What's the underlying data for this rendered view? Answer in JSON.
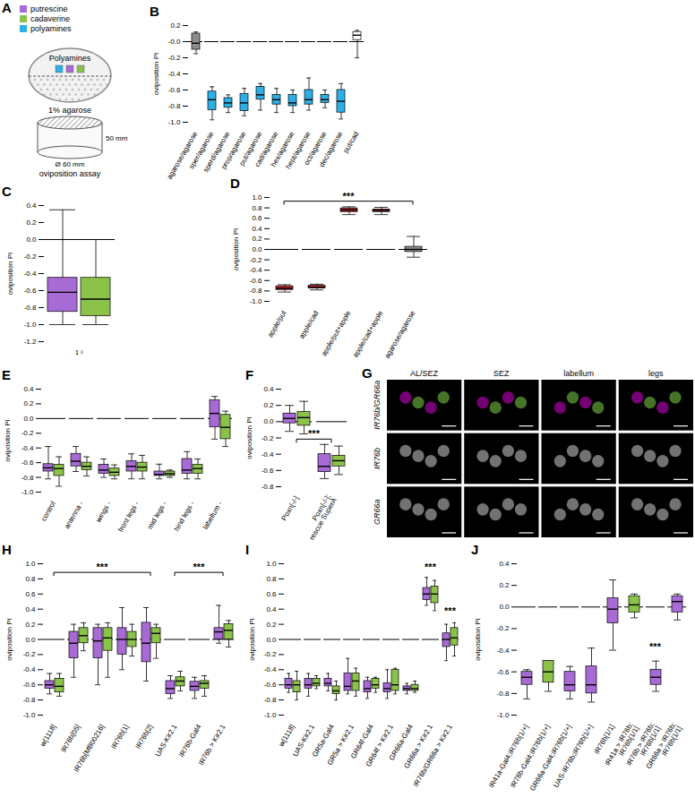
{
  "chart_data": [
    {
      "type": "box",
      "title": "B",
      "ylabel": "oviposition PI",
      "ylim": [
        -1.0,
        0.2
      ],
      "reference_line": 0,
      "yticks": [
        {
          "value": -1.0,
          "label": "-1.0"
        },
        -0.8,
        -0.6,
        -0.4,
        -0.2,
        {
          "value": 0,
          "label": "-0.0"
        },
        0.2
      ],
      "categories": [
        "agarose/agarose",
        "sper/agarose",
        "sperd/agarose",
        "prop/agarose",
        "put/agarose",
        "cad/agarose",
        "hex/agarose",
        "hept/agarose",
        "oct/agarose",
        "dec/agarose",
        "put/cad"
      ],
      "series": [
        {
          "colors": [
            "#8c8c8c",
            "#2bb0e6",
            "#2bb0e6",
            "#2bb0e6",
            "#2bb0e6",
            "#2bb0e6",
            "#2bb0e6",
            "#2bb0e6",
            "#2bb0e6",
            "#2bb0e6",
            "#ffffff"
          ],
          "min": [
            -0.15,
            -0.97,
            -0.88,
            -0.92,
            -0.85,
            -0.88,
            -0.88,
            -0.85,
            -0.82,
            -0.96,
            -0.2
          ],
          "q1": [
            -0.1,
            -0.85,
            -0.82,
            -0.86,
            -0.72,
            -0.78,
            -0.8,
            -0.78,
            -0.76,
            -0.88,
            0.02
          ],
          "median": [
            -0.02,
            -0.72,
            -0.76,
            -0.76,
            -0.66,
            -0.72,
            -0.76,
            -0.72,
            -0.72,
            -0.74,
            0.08
          ],
          "q3": [
            0.1,
            -0.62,
            -0.7,
            -0.65,
            -0.56,
            -0.66,
            -0.66,
            -0.6,
            -0.66,
            -0.6,
            0.12
          ],
          "max": [
            0.12,
            -0.56,
            -0.66,
            -0.58,
            -0.52,
            -0.58,
            -0.6,
            -0.45,
            -0.6,
            -0.52,
            0.14
          ]
        }
      ],
      "annotations": []
    },
    {
      "type": "box",
      "title": "C",
      "ylabel": "oviposition PI",
      "ylim": [
        -1.2,
        0.4
      ],
      "reference_line": 0,
      "yticks": [
        0.4,
        0.2,
        {
          "value": 0,
          "label": "0.0"
        },
        -0.2,
        -0.4,
        -0.6,
        -0.8,
        {
          "value": -1.0,
          "label": "-1.0"
        },
        -1.2
      ],
      "categories": [
        "1♀"
      ],
      "series": [
        {
          "color": "#a86bd6",
          "min": [
            -1.0
          ],
          "q1": [
            -0.85
          ],
          "median": [
            -0.62
          ],
          "q3": [
            -0.45
          ],
          "max": [
            0.35
          ]
        },
        {
          "color": "#8bc34a",
          "min": [
            -1.0
          ],
          "q1": [
            -0.9
          ],
          "median": [
            -0.7
          ],
          "q3": [
            -0.45
          ],
          "max": [
            0.0
          ]
        }
      ],
      "annotations": []
    },
    {
      "type": "box",
      "title": "D",
      "ylabel": "oviposition PI",
      "ylim": [
        -1.0,
        1.0
      ],
      "reference_line": 0,
      "yticks": [
        {
          "value": -1.0,
          "label": "-1.0"
        },
        -0.8,
        -0.6,
        -0.4,
        -0.2,
        {
          "value": 0,
          "label": "0.0"
        },
        0.2,
        0.4,
        0.6,
        0.8,
        {
          "value": 1.0,
          "label": "1.0"
        }
      ],
      "categories": [
        "apple/put",
        "apple/cad",
        "apple/put+apple",
        "apple/cad+apple",
        "agarose/agarose"
      ],
      "series": [
        {
          "colors": [
            "#c0272d",
            "#c0272d",
            "#c0272d",
            "#c0272d",
            "#8c8c8c"
          ],
          "min": [
            -0.82,
            -0.78,
            0.67,
            0.67,
            -0.15
          ],
          "q1": [
            -0.78,
            -0.75,
            0.72,
            0.72,
            -0.05
          ],
          "median": [
            -0.75,
            -0.73,
            0.76,
            0.75,
            0.0
          ],
          "q3": [
            -0.71,
            -0.7,
            0.79,
            0.77,
            0.05
          ],
          "max": [
            -0.68,
            -0.67,
            0.82,
            0.81,
            0.25
          ]
        }
      ],
      "annotations": [
        {
          "text": "***",
          "from": "apple/put",
          "to": "agarose/agarose",
          "y": 0.92
        }
      ]
    },
    {
      "type": "box",
      "title": "E",
      "ylabel": "oviposition PI",
      "ylim": [
        -1.0,
        0.4
      ],
      "reference_line": 0,
      "yticks": [
        {
          "value": -1.0,
          "label": "-1.0"
        },
        -0.8,
        -0.6,
        -0.4,
        -0.2,
        {
          "value": 0,
          "label": "0.0"
        },
        0.2,
        0.4
      ],
      "categories": [
        "control",
        "antenna -",
        "wings -",
        "front legs -",
        "mid legs -",
        "hind legs -",
        "labellum -"
      ],
      "series": [
        {
          "color": "#a86bd6",
          "min": [
            -0.82,
            -0.72,
            -0.8,
            -0.82,
            -0.82,
            -0.82,
            -0.28
          ],
          "q1": [
            -0.72,
            -0.65,
            -0.75,
            -0.72,
            -0.78,
            -0.75,
            -0.12
          ],
          "median": [
            -0.67,
            -0.58,
            -0.7,
            -0.65,
            -0.76,
            -0.7,
            0.07
          ],
          "q3": [
            -0.62,
            -0.48,
            -0.63,
            -0.58,
            -0.72,
            -0.55,
            0.25
          ],
          "max": [
            -0.38,
            -0.38,
            -0.55,
            -0.48,
            -0.62,
            -0.45,
            0.3
          ]
        },
        {
          "color": "#8bc34a",
          "min": [
            -0.92,
            -0.78,
            -0.82,
            -0.82,
            -0.8,
            -0.82,
            -0.38
          ],
          "q1": [
            -0.78,
            -0.7,
            -0.78,
            -0.72,
            -0.78,
            -0.75,
            -0.28
          ],
          "median": [
            -0.68,
            -0.65,
            -0.73,
            -0.66,
            -0.75,
            -0.68,
            -0.12
          ],
          "q3": [
            -0.63,
            -0.6,
            -0.68,
            -0.6,
            -0.72,
            -0.63,
            0.05
          ],
          "max": [
            -0.52,
            -0.52,
            -0.63,
            -0.5,
            -0.7,
            -0.55,
            0.1
          ]
        }
      ],
      "annotations": []
    },
    {
      "type": "box",
      "title": "F",
      "ylabel": "oviposition PI",
      "ylim": [
        -0.8,
        0.4
      ],
      "reference_line": 0,
      "yticks": [
        -0.8,
        -0.6,
        -0.4,
        -0.2,
        {
          "value": 0,
          "label": "0.0"
        },
        0.2,
        0.4
      ],
      "categories": [
        "Poxn[-/-]",
        "Poxn[-/-]; rescue SuperA"
      ],
      "series": [
        {
          "color": "#a86bd6",
          "min": [
            -0.12,
            -0.7
          ],
          "q1": [
            -0.02,
            -0.62
          ],
          "median": [
            0.04,
            -0.55
          ],
          "q3": [
            0.1,
            -0.4
          ],
          "max": [
            0.2,
            -0.28
          ]
        },
        {
          "color": "#8bc34a",
          "min": [
            -0.15,
            -0.65
          ],
          "q1": [
            -0.05,
            -0.55
          ],
          "median": [
            0.05,
            -0.48
          ],
          "q3": [
            0.12,
            -0.42
          ],
          "max": [
            0.25,
            -0.3
          ]
        }
      ],
      "annotations": [
        {
          "text": "***",
          "from": "Poxn[-/-]",
          "to": "Poxn[-/-]; rescue SuperA",
          "y": -0.22
        }
      ]
    },
    {
      "type": "box",
      "title": "H",
      "ylabel": "oviposition PI",
      "ylim": [
        -1.0,
        1.0
      ],
      "reference_line": 0,
      "yticks": [
        {
          "value": -1.0,
          "label": "-1.0"
        },
        -0.8,
        -0.6,
        -0.4,
        -0.2,
        {
          "value": 0,
          "label": "0.0"
        },
        0.2,
        0.4,
        0.6,
        0.8,
        {
          "value": 1.0,
          "label": "1.0"
        }
      ],
      "categories": [
        "w[1118]",
        "IR76b[05]",
        "IR76b[MB00216]",
        "IR76b[1]",
        "IR76b[2]",
        "UAS-Kir2.1",
        "IR76b-Gal4",
        "IR76b > Kir2.1"
      ],
      "series": [
        {
          "color": "#a86bd6",
          "min": [
            -0.72,
            -0.5,
            -0.6,
            -0.4,
            -0.55,
            -0.78,
            -0.78,
            -0.05
          ],
          "q1": [
            -0.65,
            -0.25,
            -0.25,
            -0.2,
            -0.3,
            -0.72,
            -0.68,
            0.0
          ],
          "median": [
            -0.6,
            -0.05,
            -0.02,
            0.0,
            -0.05,
            -0.65,
            -0.62,
            0.1
          ],
          "q3": [
            -0.55,
            0.1,
            0.15,
            0.15,
            0.22,
            -0.55,
            -0.56,
            0.15
          ],
          "max": [
            -0.45,
            0.2,
            0.2,
            0.42,
            0.42,
            -0.48,
            -0.5,
            0.45
          ]
        },
        {
          "color": "#8bc34a",
          "min": [
            -0.75,
            -0.15,
            -0.5,
            -0.22,
            -0.25,
            -0.68,
            -0.75,
            -0.1
          ],
          "q1": [
            -0.7,
            -0.05,
            -0.15,
            -0.1,
            -0.05,
            -0.62,
            -0.65,
            0.0
          ],
          "median": [
            -0.62,
            0.05,
            0.02,
            0.0,
            0.08,
            -0.55,
            -0.58,
            0.12
          ],
          "q3": [
            -0.52,
            0.15,
            0.15,
            0.1,
            0.15,
            -0.5,
            -0.55,
            0.2
          ],
          "max": [
            -0.45,
            0.22,
            0.22,
            0.2,
            0.2,
            -0.42,
            -0.48,
            0.25
          ]
        }
      ],
      "annotations": [
        {
          "text": "***",
          "from": "w[1118]",
          "to": "IR76b[2]",
          "y": 0.88
        },
        {
          "text": "***",
          "from": "UAS-Kir2.1",
          "to": "IR76b > Kir2.1",
          "y": 0.88
        }
      ]
    },
    {
      "type": "box",
      "title": "I",
      "ylabel": "oviposition PI",
      "ylim": [
        -1.0,
        1.0
      ],
      "reference_line": 0,
      "yticks": [
        {
          "value": -1.0,
          "label": "-1.0"
        },
        -0.8,
        -0.6,
        -0.4,
        -0.2,
        {
          "value": 0,
          "label": "0.0"
        },
        0.2,
        0.4,
        0.6,
        0.8,
        {
          "value": 1.0,
          "label": "1.0"
        }
      ],
      "categories": [
        "w[1118]",
        "UAS-Kir2.1",
        "GR5a-Gal4",
        "GR5a > Kir2.1",
        "GR64f-Gal4",
        "GR64f > Kir2.1",
        "GR66a-Gal4",
        "GR66a > Kir2.1",
        "IR76b/GR66a > Kir2.1"
      ],
      "series": [
        {
          "color": "#a86bd6",
          "min": [
            -0.7,
            -0.75,
            -0.68,
            -0.72,
            -0.78,
            -0.78,
            -0.72,
            0.45,
            -0.28
          ],
          "q1": [
            -0.65,
            -0.65,
            -0.62,
            -0.68,
            -0.7,
            -0.7,
            -0.68,
            0.52,
            -0.1
          ],
          "median": [
            -0.6,
            -0.6,
            -0.58,
            -0.62,
            -0.65,
            -0.65,
            -0.65,
            0.6,
            0.0
          ],
          "q3": [
            -0.52,
            -0.52,
            -0.52,
            -0.45,
            -0.55,
            -0.58,
            -0.62,
            0.68,
            0.08
          ],
          "max": [
            -0.45,
            -0.45,
            -0.45,
            -0.25,
            -0.5,
            -0.4,
            -0.58,
            0.82,
            0.2
          ]
        },
        {
          "color": "#8bc34a",
          "min": [
            -0.8,
            -0.65,
            -0.8,
            -0.75,
            -0.7,
            -0.72,
            -0.7,
            0.38,
            -0.22
          ],
          "q1": [
            -0.7,
            -0.62,
            -0.72,
            -0.68,
            -0.65,
            -0.68,
            -0.68,
            0.48,
            -0.08
          ],
          "median": [
            -0.6,
            -0.58,
            -0.68,
            -0.55,
            -0.6,
            -0.6,
            -0.65,
            0.6,
            0.02
          ],
          "q3": [
            -0.55,
            -0.52,
            -0.62,
            -0.45,
            -0.52,
            -0.4,
            -0.6,
            0.7,
            0.15
          ],
          "max": [
            -0.42,
            -0.48,
            -0.55,
            -0.38,
            -0.5,
            -0.38,
            -0.55,
            0.78,
            0.22
          ]
        }
      ],
      "annotations": [
        {
          "text": "***",
          "from": "GR66a > Kir2.1",
          "to": "GR66a > Kir2.1",
          "y": 0.88
        },
        {
          "text": "***",
          "from": "IR76b/GR66a > Kir2.1",
          "to": "IR76b/GR66a > Kir2.1",
          "y": 0.3
        }
      ]
    },
    {
      "type": "box",
      "title": "J",
      "ylabel": "oviposition PI",
      "ylim": [
        -1.0,
        0.4
      ],
      "reference_line": 0,
      "yticks": [
        {
          "value": -1.0,
          "label": "-1.0"
        },
        -0.8,
        -0.6,
        -0.4,
        -0.2,
        {
          "value": 0,
          "label": "0.0"
        },
        0.2,
        0.4
      ],
      "categories": [
        "IR41a-Gal4;IR76b[1/+]",
        "IR76b-Gal4;IR76b[1/+]",
        "GR66a-Gal4;IR76b[1/+]",
        "UAS-IR76b;IR76b[1/+]",
        "IR76b[1/1]",
        "IR41a > IR76b; IR76b[1/1]",
        "IR76b > IR76b; IR76b[1/1]",
        "GR66a > IR76b; IR76b[1/1]"
      ],
      "series": [
        {
          "colors": [
            "#a86bd6",
            "#8bc34a",
            "#a86bd6",
            "#a86bd6",
            "#a86bd6",
            "#8bc34a",
            "#a86bd6",
            "#a86bd6"
          ],
          "min": [
            -0.85,
            -0.78,
            -0.85,
            -0.88,
            -0.4,
            -0.1,
            -0.78,
            -0.12
          ],
          "q1": [
            -0.72,
            -0.7,
            -0.78,
            -0.8,
            -0.15,
            -0.05,
            -0.72,
            -0.05
          ],
          "median": [
            -0.65,
            -0.6,
            -0.72,
            -0.72,
            -0.02,
            0.02,
            -0.65,
            0.05
          ],
          "q3": [
            -0.6,
            -0.5,
            -0.6,
            -0.55,
            0.08,
            0.1,
            -0.58,
            0.1
          ],
          "max": [
            -0.58,
            -0.5,
            -0.55,
            -0.38,
            0.25,
            0.12,
            -0.5,
            0.12
          ]
        }
      ],
      "annotations": [
        {
          "text": "***",
          "from": "IR76b > IR76b; IR76b[1/1]",
          "to": "IR76b > IR76b; IR76b[1/1]",
          "y": -0.42
        }
      ]
    }
  ],
  "diagrams": [
    {
      "title": "A",
      "legend": [
        {
          "name": "putrescine",
          "color": "#a86bd6"
        },
        {
          "name": "cadaverine",
          "color": "#8bc34a"
        },
        {
          "name": "polyamines",
          "color": "#2bb0e6"
        }
      ],
      "dish_label": "Polyamines",
      "agar_label": "1% agarose",
      "height_label": "50 mm",
      "diameter_label": "Ø 60 mm",
      "caption": "oviposition assay"
    },
    {
      "title": "G",
      "columns": [
        "AL/SEZ",
        "SEZ",
        "labellum",
        "legs"
      ],
      "rows": [
        "IR76b/GR66a",
        "IR76b",
        "GR66a"
      ]
    }
  ]
}
